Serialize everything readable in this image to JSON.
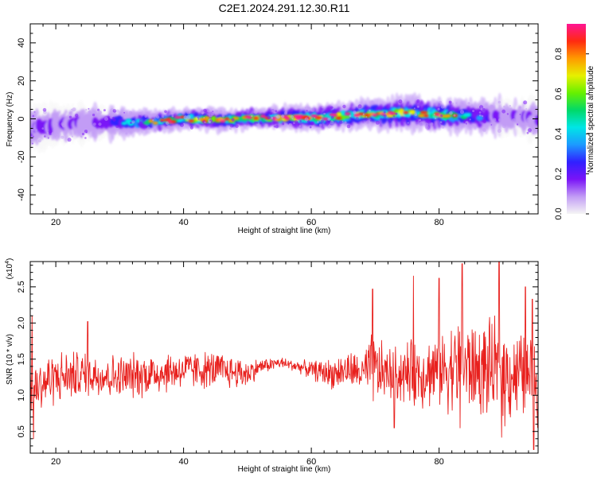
{
  "title": "C2E1.2024.291.12.30.R11",
  "colors": {
    "snr_line": "#e8201d",
    "ridge": "#e8201d",
    "halo": "#5a14e0",
    "colormap": [
      "#f5f5f5",
      "#c29cf5",
      "#7a14f7",
      "#3020ff",
      "#1c9aff",
      "#00e6e6",
      "#00d96a",
      "#66f000",
      "#e6f000",
      "#ff9a00",
      "#ff2a10",
      "#ff1493"
    ]
  },
  "chart_data": [
    {
      "type": "heatmap",
      "title": "C2E1.2024.291.12.30.R11",
      "xlabel": "Height of straight line (km)",
      "ylabel": "Frequency (Hz)",
      "xlim": [
        16,
        95.5
      ],
      "ylim": [
        -50,
        50
      ],
      "xticks": [
        20,
        40,
        60,
        80
      ],
      "yticks": [
        -40,
        -20,
        0,
        20,
        40
      ],
      "colorbar": {
        "label": "Normalized spectral amplitude",
        "range": [
          0,
          0.95
        ],
        "ticks": [
          "0.0",
          "0.2",
          "0.4",
          "0.6",
          "0.8"
        ]
      },
      "ridge": {
        "x": [
          16,
          20,
          25,
          30,
          35,
          40,
          45,
          50,
          55,
          60,
          65,
          70,
          75,
          80,
          85,
          90,
          95.5
        ],
        "frequency_hz": [
          -5,
          -3,
          -2,
          -2,
          -1.5,
          0,
          -0.5,
          0,
          0.5,
          0.5,
          1.5,
          2.5,
          3,
          2,
          1.5,
          1,
          0
        ],
        "peak_amplitude": [
          0.35,
          0.3,
          0.35,
          0.5,
          0.75,
          0.85,
          0.8,
          0.8,
          0.9,
          0.95,
          0.95,
          0.9,
          0.85,
          0.85,
          0.6,
          0.35,
          0.3
        ],
        "spread_hz": [
          6,
          5.5,
          5,
          4,
          3,
          3,
          3,
          3,
          3,
          3.5,
          3.5,
          4,
          4.5,
          4.5,
          4.5,
          5,
          5.5
        ]
      }
    },
    {
      "type": "line",
      "xlabel": "Height of straight line (km)",
      "ylabel": "SNR (10 * v/v)",
      "y_multiplier_label": "(x10",
      "y_multiplier_exponent": "4",
      "y_multiplier_close": ")",
      "xlim": [
        16,
        95.5
      ],
      "ylim": [
        0.2,
        2.85
      ],
      "xticks": [
        20,
        40,
        60,
        80
      ],
      "yticks": [
        "0.5",
        "1.0",
        "1.5",
        "2.0",
        "2.5"
      ],
      "series": [
        {
          "x": [
            16,
            20,
            25,
            30,
            35,
            40,
            45,
            50,
            52,
            55,
            58,
            60,
            63,
            66,
            68,
            69.5,
            72,
            76,
            80,
            82,
            84,
            86,
            88,
            89.5,
            92,
            95.5
          ],
          "mean": [
            1.1,
            1.25,
            1.3,
            1.25,
            1.3,
            1.35,
            1.35,
            1.3,
            1.4,
            1.45,
            1.4,
            1.35,
            1.3,
            1.35,
            1.3,
            1.35,
            1.3,
            1.3,
            1.35,
            1.4,
            1.4,
            1.35,
            1.35,
            1.3,
            1.3,
            1.2
          ],
          "spread": [
            0.4,
            0.35,
            0.3,
            0.3,
            0.3,
            0.25,
            0.25,
            0.2,
            0.1,
            0.08,
            0.08,
            0.12,
            0.2,
            0.25,
            0.25,
            0.5,
            0.35,
            0.45,
            0.5,
            0.6,
            0.65,
            0.6,
            0.65,
            0.7,
            0.6,
            0.55
          ],
          "peaks": [
            [
              16.3,
              2.1
            ],
            [
              25,
              2.02
            ],
            [
              69.6,
              2.47
            ],
            [
              76,
              2.65
            ],
            [
              80,
              2.62
            ],
            [
              83.6,
              2.82
            ],
            [
              89.4,
              2.92
            ],
            [
              93.5,
              2.5
            ],
            [
              94.6,
              2.33
            ]
          ],
          "troughs": [
            [
              16.5,
              0.4
            ],
            [
              73,
              0.55
            ],
            [
              83.3,
              0.55
            ],
            [
              89.8,
              0.42
            ],
            [
              94.8,
              0.25
            ]
          ]
        }
      ]
    }
  ]
}
